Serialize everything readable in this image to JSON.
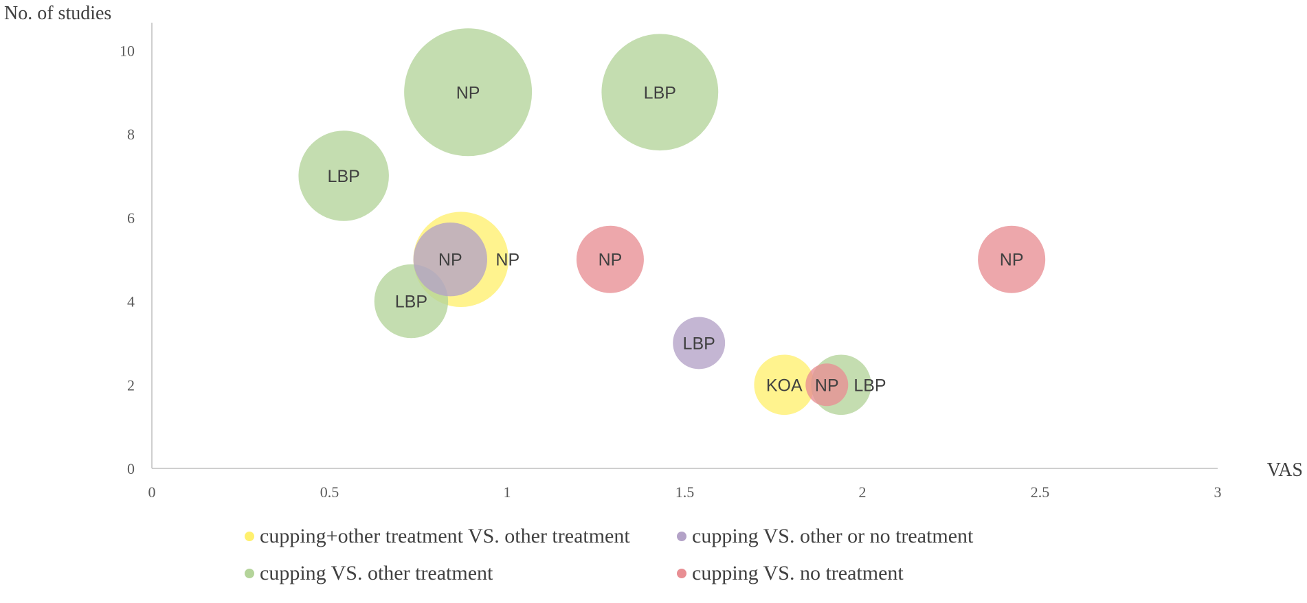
{
  "chart_data": {
    "type": "bubble",
    "title": "",
    "xlabel": "VAS",
    "ylabel": "No. of studies",
    "xlim": [
      0,
      3
    ],
    "ylim": [
      0,
      10.5
    ],
    "xticks": [
      0,
      0.5,
      1,
      1.5,
      2,
      2.5,
      3
    ],
    "yticks": [
      0,
      2,
      4,
      6,
      8,
      10
    ],
    "xtick_labels": [
      "0",
      "0.5",
      "1",
      "1.5",
      "2",
      "2.5",
      "3"
    ],
    "ytick_labels": [
      "0",
      "2",
      "4",
      "6",
      "8",
      "10"
    ],
    "series": [
      {
        "name": "cupping+other treatment VS. other treatment",
        "color": "#FFF06E",
        "points": [
          {
            "x": 0.87,
            "y": 5,
            "size": 5,
            "label": "NP"
          },
          {
            "x": 1.78,
            "y": 2,
            "size": 2,
            "label": "KOA"
          }
        ]
      },
      {
        "name": "cupping VS. other or no treatment",
        "color": "#B3A2C7",
        "points": [
          {
            "x": 0.84,
            "y": 5,
            "size": 3,
            "label": "NP"
          },
          {
            "x": 1.54,
            "y": 3,
            "size": 1.5,
            "label": "LBP"
          }
        ]
      },
      {
        "name": "cupping VS. other treatment",
        "color": "#B4D49A",
        "points": [
          {
            "x": 0.54,
            "y": 7,
            "size": 4.5,
            "label": "LBP"
          },
          {
            "x": 0.89,
            "y": 9,
            "size": 9,
            "label": "NP"
          },
          {
            "x": 1.43,
            "y": 9,
            "size": 7.5,
            "label": "LBP"
          },
          {
            "x": 0.73,
            "y": 4,
            "size": 3.0,
            "label": "LBP"
          },
          {
            "x": 1.94,
            "y": 2,
            "size": 2.0,
            "label": "LBP"
          }
        ]
      },
      {
        "name": "cupping VS. no treatment",
        "color": "#E88E93",
        "points": [
          {
            "x": 1.29,
            "y": 5,
            "size": 2.5,
            "label": "NP"
          },
          {
            "x": 2.42,
            "y": 5,
            "size": 2.5,
            "label": "NP"
          },
          {
            "x": 1.9,
            "y": 2,
            "size": 1.0,
            "label": "NP"
          }
        ]
      }
    ],
    "legend": "bottom"
  }
}
